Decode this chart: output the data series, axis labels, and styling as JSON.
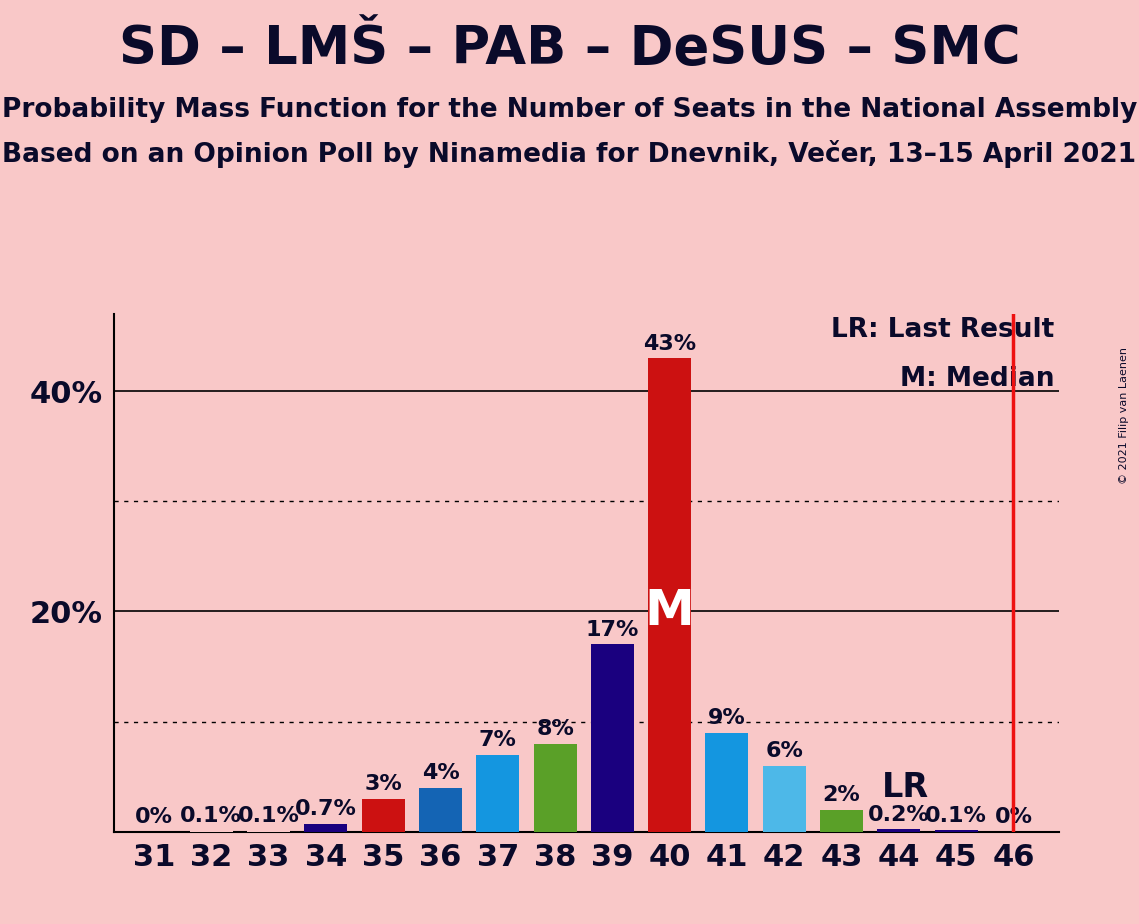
{
  "title": "SD – LMŠ – PAB – DeSUS – SMC",
  "subtitle1": "Probability Mass Function for the Number of Seats in the National Assembly",
  "subtitle2": "Based on an Opinion Poll by Ninamedia for Dnevnik, Večer, 13–15 April 2021",
  "copyright": "© 2021 Filip van Laenen",
  "background_color": "#f9c8c8",
  "seats": [
    31,
    32,
    33,
    34,
    35,
    36,
    37,
    38,
    39,
    40,
    41,
    42,
    43,
    44,
    45,
    46
  ],
  "values": [
    0.0,
    0.001,
    0.001,
    0.007,
    0.03,
    0.04,
    0.07,
    0.08,
    0.17,
    0.43,
    0.09,
    0.06,
    0.02,
    0.002,
    0.001,
    0.0
  ],
  "labels": [
    "0%",
    "0.1%",
    "0.1%",
    "0.7%",
    "3%",
    "4%",
    "7%",
    "8%",
    "17%",
    "43%",
    "9%",
    "6%",
    "2%",
    "0.2%",
    "0.1%",
    "0%"
  ],
  "bar_colors": [
    "#f9c8c8",
    "#f9c8c8",
    "#f9c8c8",
    "#1a007f",
    "#cc1111",
    "#1464b4",
    "#1496e0",
    "#5aa028",
    "#1a007f",
    "#cc1111",
    "#1496e0",
    "#4db8e8",
    "#5aa028",
    "#1a007f",
    "#1a007f",
    "#f9c8c8"
  ],
  "median_seat": 40,
  "last_result_seat": 46,
  "lr_label_seat": 43,
  "ylim": [
    0,
    0.47
  ],
  "yticks": [
    0.0,
    0.2,
    0.4
  ],
  "ytick_labels": [
    "",
    "20%",
    "40%"
  ],
  "solid_grid": [
    0.2,
    0.4
  ],
  "dotted_grid": [
    0.1,
    0.3
  ],
  "title_fontsize": 38,
  "subtitle_fontsize": 19,
  "label_fontsize": 16,
  "tick_fontsize": 22,
  "annotation_color": "#0a0a2a"
}
